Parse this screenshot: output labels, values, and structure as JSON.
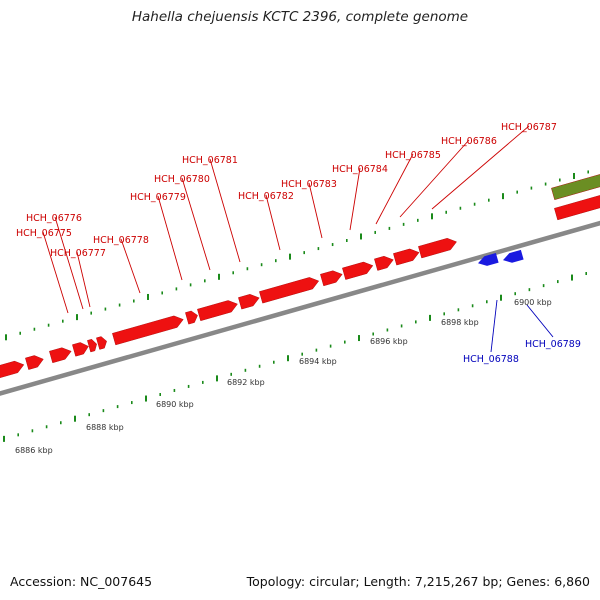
{
  "title": "Hahella chejuensis KCTC 2396, complete genome",
  "footer": {
    "accession": "Accession: NC_007645",
    "summary": "Topology: circular; Length: 7,215,267 bp; Genes: 6,860"
  },
  "colors": {
    "forward_gene": "#ee1111",
    "reverse_gene": "#1a1ae0",
    "other_feature": "#6b8e23",
    "forward_label": "#cc0000",
    "reverse_label": "#0000bb",
    "backbone": "#888888",
    "ticks": "#1a8a1a"
  },
  "scale_labels": [
    "6886 kbp",
    "6888 kbp",
    "6890 kbp",
    "6892 kbp",
    "6894 kbp",
    "6896 kbp",
    "6898 kbp",
    "6900 kbp"
  ],
  "forward_gene_labels": [
    "HCH_06775",
    "HCH_06776",
    "HCH_06777",
    "HCH_06778",
    "HCH_06779",
    "HCH_06780",
    "HCH_06781",
    "HCH_06782",
    "HCH_06783",
    "HCH_06784",
    "HCH_06785",
    "HCH_06786",
    "HCH_06787"
  ],
  "reverse_gene_labels": [
    "HCH_06788",
    "HCH_06789"
  ]
}
